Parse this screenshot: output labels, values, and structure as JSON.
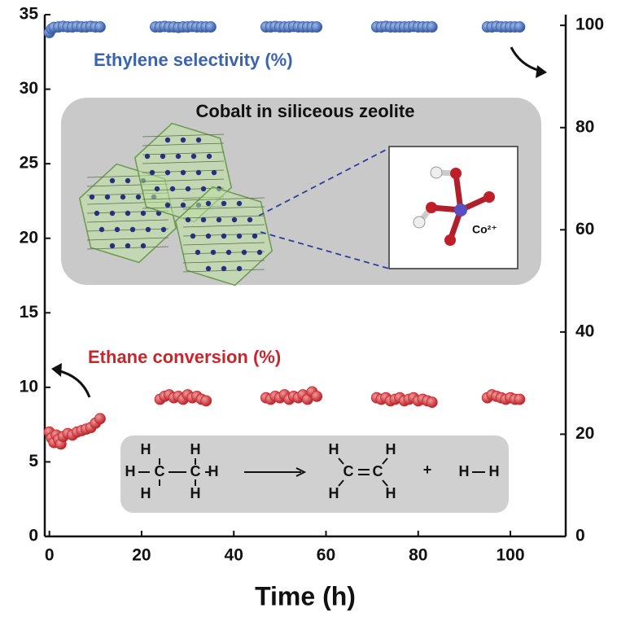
{
  "chart_data": {
    "type": "scatter",
    "xlabel": "Time (h)",
    "xlim": [
      -1,
      112
    ],
    "xticks": [
      0,
      20,
      40,
      60,
      80,
      100
    ],
    "ylim": [
      0,
      35
    ],
    "yticks": [
      0,
      5,
      10,
      15,
      20,
      25,
      30,
      35
    ],
    "y2lim": [
      0,
      102.1
    ],
    "y2ticks": [
      0,
      20,
      40,
      60,
      80,
      100
    ],
    "series": [
      {
        "name": "Ethylene selectivity (%)",
        "color": "#3b63b0",
        "axis": "y2",
        "x": [
          0,
          0.5,
          1,
          2,
          3,
          4,
          5,
          6,
          7,
          8,
          9,
          10,
          11,
          23,
          24,
          25,
          26,
          27,
          28,
          29,
          30,
          31,
          32,
          33,
          34,
          35,
          47,
          48,
          49,
          50,
          51,
          52,
          53,
          54,
          55,
          56,
          57,
          58,
          71,
          72,
          73,
          74,
          75,
          76,
          77,
          78,
          79,
          80,
          81,
          82,
          83,
          95,
          96,
          97,
          98,
          99,
          100,
          101,
          102
        ],
        "values": [
          98.6,
          99.3,
          99.6,
          99.7,
          99.8,
          99.7,
          99.7,
          99.8,
          99.7,
          99.7,
          99.8,
          99.7,
          99.7,
          99.7,
          99.7,
          99.8,
          99.7,
          99.7,
          99.6,
          99.7,
          99.7,
          99.8,
          99.7,
          99.7,
          99.7,
          99.7,
          99.7,
          99.7,
          99.8,
          99.7,
          99.7,
          99.7,
          99.8,
          99.7,
          99.7,
          99.7,
          99.7,
          99.7,
          99.7,
          99.7,
          99.8,
          99.7,
          99.7,
          99.7,
          99.7,
          99.7,
          99.8,
          99.7,
          99.7,
          99.7,
          99.7,
          99.7,
          99.7,
          99.8,
          99.7,
          99.7,
          99.7,
          99.7,
          99.7
        ]
      },
      {
        "name": "Ethane conversion (%)",
        "color": "#c8262c",
        "axis": "y",
        "x": [
          0,
          0.5,
          1,
          1.5,
          2,
          2.5,
          3,
          4,
          5,
          6,
          7,
          8,
          9,
          10,
          11,
          24,
          25,
          26,
          27,
          28,
          29,
          30,
          31,
          32,
          33,
          34,
          47,
          48,
          49,
          50,
          51,
          52,
          53,
          54,
          55,
          56,
          57,
          58,
          71,
          72,
          73,
          74,
          75,
          76,
          77,
          78,
          79,
          80,
          81,
          82,
          83,
          95,
          96,
          97,
          98,
          99,
          100,
          101,
          102
        ],
        "values": [
          7.0,
          6.6,
          6.3,
          6.8,
          6.5,
          6.2,
          6.7,
          6.9,
          6.8,
          7.0,
          7.1,
          7.2,
          7.3,
          7.6,
          7.9,
          9.2,
          9.4,
          9.5,
          9.3,
          9.4,
          9.2,
          9.5,
          9.3,
          9.4,
          9.2,
          9.1,
          9.3,
          9.2,
          9.4,
          9.3,
          9.5,
          9.2,
          9.4,
          9.3,
          9.5,
          9.2,
          9.7,
          9.4,
          9.3,
          9.2,
          9.3,
          9.1,
          9.2,
          9.3,
          9.1,
          9.2,
          9.3,
          9.1,
          9.2,
          9.1,
          9.0,
          9.3,
          9.5,
          9.4,
          9.3,
          9.2,
          9.3,
          9.2,
          9.2
        ]
      }
    ],
    "inset_title": "Cobalt in siliceous zeolite",
    "inset_ion": "Co²⁺",
    "reaction_atoms": [
      "H",
      "H",
      "H",
      "C",
      "C",
      "H",
      "H",
      "H",
      "H",
      "H",
      "C",
      "C",
      "H",
      "H",
      "+",
      "H",
      "H"
    ]
  }
}
